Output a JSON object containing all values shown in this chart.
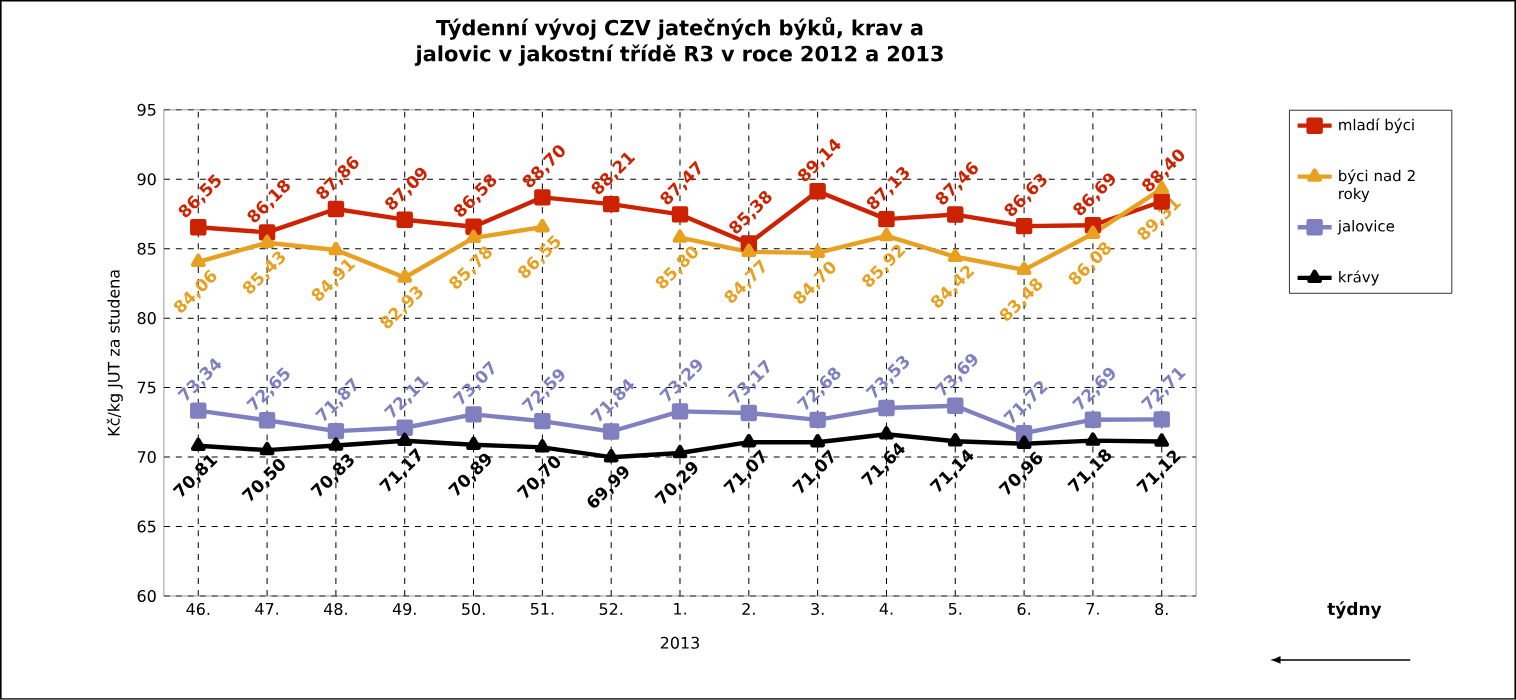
{
  "chart_data": {
    "type": "line",
    "title": "Týdenní vývoj CZV jatečných býků, krav a jalovic v jakostní třídě R3  v roce 2012 a 2013",
    "xlabel": "2013",
    "ylabel": "Kč/kg JUT za studena",
    "categories": [
      "46.",
      "47.",
      "48.",
      "49.",
      "50.",
      "51.",
      "52.",
      "1.",
      "2.",
      "3.",
      "4.",
      "5.",
      "6.",
      "7.",
      "8."
    ],
    "series": [
      {
        "name": "mladí býci",
        "color": "#cc2200",
        "marker": "square",
        "values": [
          86.55,
          86.18,
          87.86,
          87.09,
          86.58,
          88.7,
          88.21,
          87.47,
          85.38,
          89.14,
          87.13,
          87.46,
          86.63,
          86.69,
          88.4
        ],
        "value_labels": [
          "86,55",
          "86,18",
          "87,86",
          "87,09",
          "86,58",
          "88,70",
          "88,21",
          "87,47",
          "85,38",
          "89,14",
          "87,13",
          "87,46",
          "86,63",
          "86,69",
          "88,40"
        ]
      },
      {
        "name": "býci nad 2 roky",
        "color": "#e8a020",
        "marker": "triangle",
        "values": [
          84.06,
          85.43,
          84.91,
          82.93,
          85.78,
          86.55,
          null,
          85.8,
          84.77,
          84.7,
          85.92,
          84.42,
          83.48,
          86.08,
          89.31
        ],
        "value_labels": [
          "84,06",
          "85,43",
          "84,91",
          "82,93",
          "85,78",
          "86,55",
          null,
          "85,80",
          "84,77",
          "84,70",
          "85,92",
          "84,42",
          "83,48",
          "86,08",
          "89,31"
        ]
      },
      {
        "name": "jalovice",
        "color": "#8080c0",
        "marker": "square",
        "values": [
          73.34,
          72.65,
          71.87,
          72.11,
          73.07,
          72.59,
          71.84,
          73.29,
          73.17,
          72.68,
          73.53,
          73.69,
          71.72,
          72.69,
          72.71
        ],
        "value_labels": [
          "73,34",
          "72,65",
          "71,87",
          "72,11",
          "73,07",
          "72,59",
          "71,84",
          "73,29",
          "73,17",
          "72,68",
          "73,53",
          "73,69",
          "71,72",
          "72,69",
          "72,71"
        ]
      },
      {
        "name": "krávy",
        "color": "#000000",
        "marker": "triangle",
        "values": [
          70.81,
          70.5,
          70.83,
          71.17,
          70.89,
          70.7,
          69.99,
          70.29,
          71.07,
          71.07,
          71.64,
          71.14,
          70.96,
          71.18,
          71.12
        ],
        "value_labels": [
          "70,81",
          "70,50",
          "70,83",
          "71,17",
          "70,89",
          "70,70",
          "69,99",
          "70,29",
          "71,07",
          "71,07",
          "71,64",
          "71,14",
          "70,96",
          "71,18",
          "71,12"
        ]
      }
    ],
    "ylim": [
      60,
      95
    ],
    "yticks": [
      60,
      65,
      70,
      75,
      80,
      85,
      90,
      95
    ],
    "grid": true,
    "legend": "right",
    "annotations": [
      "týdny"
    ]
  }
}
